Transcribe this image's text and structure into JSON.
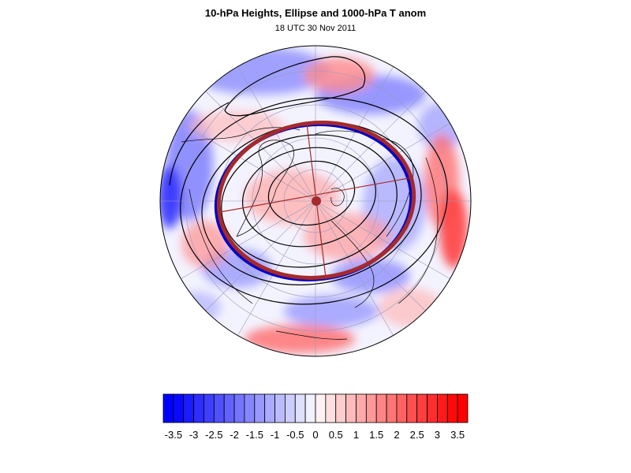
{
  "header": {
    "title": "10-hPa Heights, Ellipse and 1000-hPa T anom",
    "subtitle": "18 UTC 30 Nov 2011"
  },
  "colors": {
    "cold_max": "#0000ff",
    "warm_max": "#ff0000",
    "neutral": "#ffffff",
    "ellipse": "#a52a2a",
    "ellipse_shadow": "#0000cc",
    "contour": "#000000",
    "grid": "#9999bb"
  },
  "map": {
    "projection": "polar stereographic (north pole)",
    "field": "1000-hPa temperature anomaly (shaded)",
    "contours": "10-hPa geopotential heights",
    "overlay": "vortex ellipse with centroid"
  },
  "colorbar": {
    "min": -3.75,
    "max": 3.75,
    "step": 0.25,
    "tick_labels": [
      "-3.5",
      "-3",
      "-2.5",
      "-2",
      "-1.5",
      "-1",
      "-0.5",
      "0",
      "0.5",
      "1",
      "1.5",
      "2",
      "2.5",
      "3",
      "3.5"
    ]
  }
}
